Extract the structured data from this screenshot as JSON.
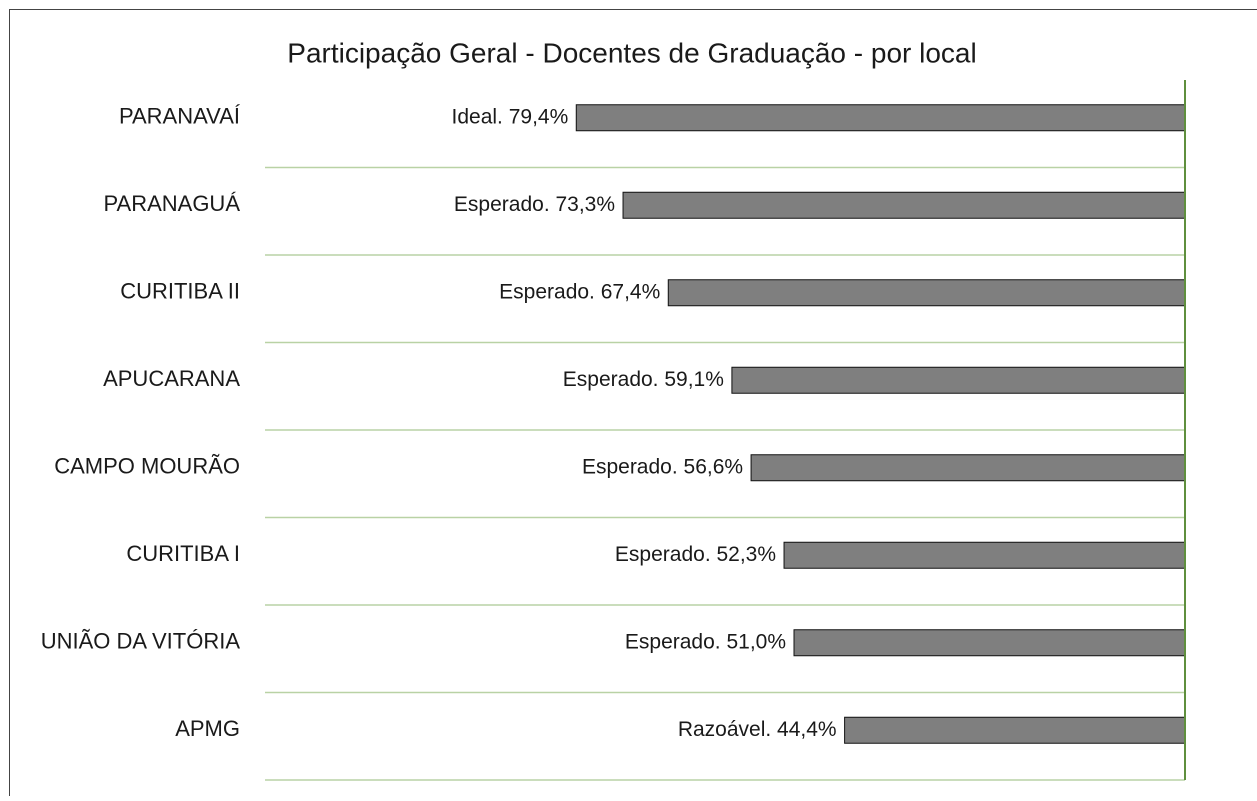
{
  "chart_data": {
    "type": "hbar",
    "title": "Participação Geral - Docentes de Graduação - por local",
    "categories": [
      "PARANAVAÍ",
      "PARANAGUÁ",
      "CURITIBA II",
      "APUCARANA",
      "CAMPO MOURÃO",
      "CURITIBA I",
      "UNIÃO DA VITÓRIA",
      "APMG"
    ],
    "values": [
      79.4,
      73.3,
      67.4,
      59.1,
      56.6,
      52.3,
      51.0,
      44.4
    ],
    "value_labels": [
      "Ideal. 79,4%",
      "Esperado. 73,3%",
      "Esperado. 67,4%",
      "Esperado. 59,1%",
      "Esperado. 56,6%",
      "Esperado. 52,3%",
      "Esperado. 51,0%",
      "Razoável. 44,4%"
    ],
    "color": "#7f7f7f",
    "xlim": [
      0,
      120
    ],
    "x_reversed": true,
    "grid": true
  }
}
